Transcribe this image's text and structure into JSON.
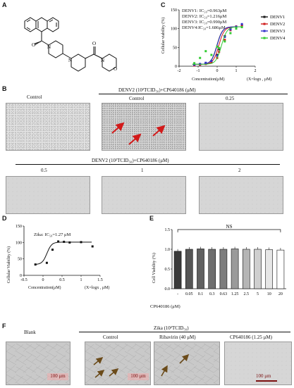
{
  "panels": {
    "A": "A",
    "B": "B",
    "C": "C",
    "D": "D",
    "E": "E",
    "F": "F"
  },
  "panelC": {
    "ylabel": "Cellular viability (%)",
    "xlabel": "Concentration(μM)",
    "xnote": "(X=logx , μM)",
    "ic50": [
      "DENV1: IC₅₀=0.963μM",
      "DENV2: IC₅₀=1.216μM",
      "DENV3: IC₅₀=0.990μM",
      "DENV4:IC₅₀=1.686μM"
    ],
    "legend": [
      "DENV1",
      "DENV2",
      "DENV3",
      "DENV4"
    ]
  },
  "panelB": {
    "title_top": "DENV2 (10²TCID₅₀)+CP640186 (μM)",
    "title_bottom": "DENV2 (10²TCID₅₀)+CP640186 (μM)",
    "labels_top": [
      "Control",
      "Control",
      "0.25"
    ],
    "labels_bottom": [
      "0.5",
      "1",
      "2"
    ]
  },
  "panelD": {
    "ic50": "Zika: IC₅₀=1.27 μM",
    "ylabel": "Cellular Viability (%)",
    "xlabel": "Concentration(μM)",
    "xnote": "(X=logx , μM)"
  },
  "panelE": {
    "ylabel": "Cell Viability (%)",
    "xlabel": "CP640186 (μM)",
    "ns": "NS"
  },
  "panelF": {
    "title": "Zika (10²TCID₅₀)",
    "labels": [
      "Blank",
      "Control",
      "Ribavirin (40 μM)",
      "CP640186 (1.25 μM)"
    ],
    "scalebar": "100 μm"
  },
  "colors": {
    "DENV1": "#1a1a1a",
    "DENV2": "#d01c1c",
    "DENV3": "#3333cc",
    "DENV4": "#33cc33",
    "arrow": "#d21a1a",
    "arrowF": "#6b4b1a"
  },
  "chart_data": [
    {
      "panel": "C",
      "type": "line",
      "xlabel": "Concentration(μM)",
      "ylabel": "Cellular viability (%)",
      "xlim": [
        -2,
        2
      ],
      "ylim": [
        0,
        150
      ],
      "x_ticks": [
        -2,
        -1,
        0,
        1,
        2
      ],
      "y_ticks": [
        0,
        50,
        100,
        150
      ],
      "legend_position": "right",
      "series": [
        {
          "name": "DENV1",
          "x": [
            -1.2,
            -0.9,
            -0.6,
            -0.3,
            0,
            0.1,
            0.4,
            0.7,
            1.0,
            1.3
          ],
          "y": [
            3,
            5,
            8,
            12,
            30,
            45,
            80,
            100,
            104,
            110
          ]
        },
        {
          "name": "DENV2",
          "x": [
            -1.2,
            -0.9,
            -0.6,
            -0.3,
            0,
            0.1,
            0.4,
            0.7,
            1.0,
            1.3
          ],
          "y": [
            2,
            4,
            6,
            10,
            22,
            38,
            70,
            96,
            106,
            108
          ]
        },
        {
          "name": "DENV3",
          "x": [
            -1.2,
            -0.9,
            -0.6,
            -0.3,
            0,
            0.1,
            0.4,
            0.7,
            1.0,
            1.3
          ],
          "y": [
            4,
            6,
            9,
            14,
            28,
            48,
            78,
            98,
            105,
            112
          ]
        },
        {
          "name": "DENV4",
          "x": [
            -1.2,
            -0.9,
            -0.6,
            -0.3,
            0,
            0.1,
            0.4,
            0.7,
            1.0,
            1.3
          ],
          "y": [
            8,
            22,
            40,
            30,
            52,
            48,
            66,
            88,
            100,
            104
          ]
        }
      ]
    },
    {
      "panel": "D",
      "type": "line",
      "xlabel": "Concentration(μM)",
      "ylabel": "Cellular Viability (%)",
      "xlim": [
        -0.5,
        1.5
      ],
      "ylim": [
        0,
        150
      ],
      "x_ticks": [
        -0.5,
        0.0,
        0.5,
        1.0,
        1.5
      ],
      "y_ticks": [
        0,
        50,
        100,
        150
      ],
      "series": [
        {
          "name": "Zika",
          "x": [
            -0.2,
            0.1,
            0.25,
            0.4,
            0.55,
            0.7,
            1.0,
            1.3
          ],
          "y": [
            33,
            38,
            78,
            103,
            102,
            100,
            101,
            88
          ]
        }
      ]
    },
    {
      "panel": "E",
      "type": "bar",
      "xlabel": "CP640186 (μM)",
      "ylabel": "Cell Viability (%)",
      "ylim": [
        0,
        1.5
      ],
      "y_ticks": [
        0.0,
        0.5,
        1.0,
        1.5
      ],
      "categories": [
        "-",
        "0.05",
        "0.1",
        "0.3",
        "0.63",
        "1.25",
        "2.5",
        "5",
        "10",
        "20"
      ],
      "values": [
        0.95,
        1.0,
        1.01,
        1.0,
        1.0,
        1.01,
        1.0,
        1.0,
        0.99,
        0.98
      ],
      "annotation": "NS"
    }
  ]
}
